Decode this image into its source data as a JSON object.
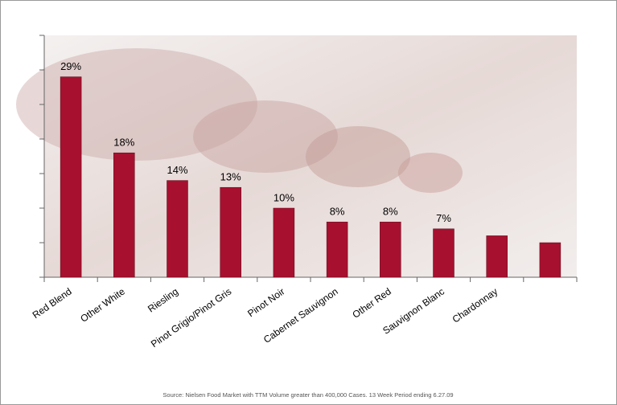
{
  "chart_data": {
    "type": "bar",
    "categories": [
      "Red Blend",
      "Other White",
      "Riesling",
      "Pinot Grigio/Pinot Gris",
      "Pinot Noir",
      "Cabernet Sauvignon",
      "Other Red",
      "Sauvignon Blanc",
      "Chardonnay",
      null
    ],
    "values": [
      29,
      18,
      14,
      13,
      10,
      8,
      8,
      7,
      6,
      5
    ],
    "value_labels": [
      "29%",
      "18%",
      "14%",
      "13%",
      "10%",
      "8%",
      "8%",
      "7%",
      null,
      null
    ],
    "color": "#a8102f",
    "ylim": [
      0,
      35
    ],
    "yticks": [
      0,
      5,
      10,
      15,
      20,
      25,
      30,
      35
    ],
    "source": "Source: Nielsen Food Market with TTM Volume greater than 400,000 Cases. 13 Week Period ending 6.27.09"
  }
}
